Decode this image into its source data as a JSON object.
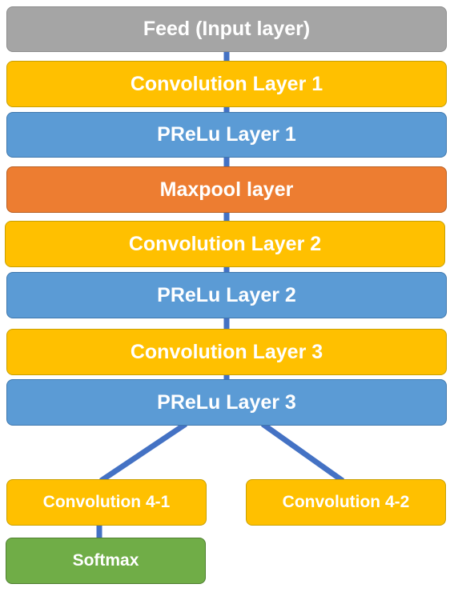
{
  "diagram": {
    "nodes": {
      "feed": "Feed (Input layer)",
      "conv1": "Convolution Layer 1",
      "prelu1": "PReLu Layer 1",
      "maxpool": "Maxpool layer",
      "conv2": "Convolution Layer 2",
      "prelu2": "PReLu Layer 2",
      "conv3": "Convolution Layer 3",
      "prelu3": "PReLu Layer 3",
      "conv41": "Convolution 4-1",
      "conv42": "Convolution 4-2",
      "softmax": "Softmax"
    },
    "edges": [
      [
        "feed",
        "conv1"
      ],
      [
        "conv1",
        "prelu1"
      ],
      [
        "prelu1",
        "maxpool"
      ],
      [
        "maxpool",
        "conv2"
      ],
      [
        "conv2",
        "prelu2"
      ],
      [
        "prelu2",
        "conv3"
      ],
      [
        "conv3",
        "prelu3"
      ],
      [
        "prelu3",
        "conv41"
      ],
      [
        "prelu3",
        "conv42"
      ],
      [
        "conv41",
        "softmax"
      ]
    ],
    "colors": {
      "input": "#a5a5a5",
      "convolution": "#ffc000",
      "prelu": "#5b9bd5",
      "maxpool": "#ed7d31",
      "softmax": "#70ad47",
      "connector": "#4472c4"
    }
  }
}
